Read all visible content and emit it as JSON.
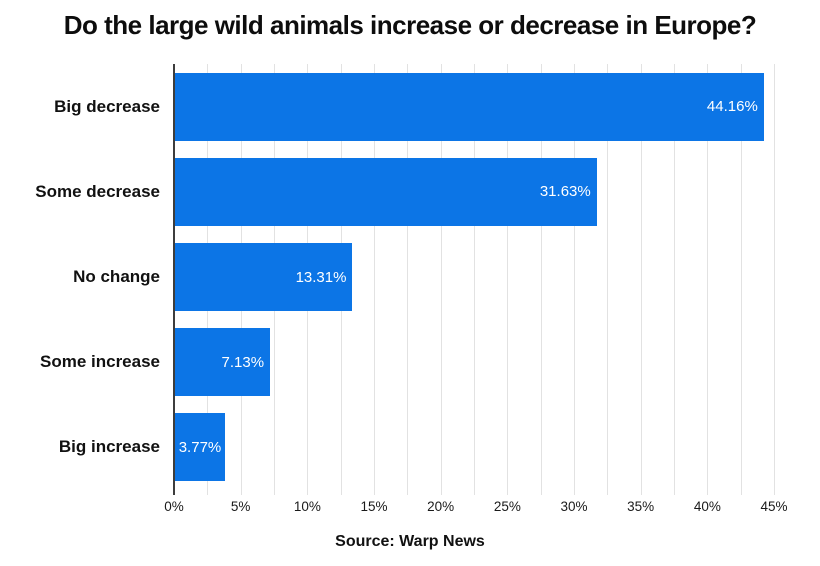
{
  "title": "Do the large wild animals increase or decrease in Europe?",
  "source": "Source: Warp News",
  "colors": {
    "bar": "#0c75e6",
    "grid": "#e2e2e2",
    "axis": "#3d3d3d",
    "value_label": "#ffffff",
    "text": "#111111",
    "background": "#ffffff"
  },
  "chart_data": {
    "type": "bar",
    "orientation": "horizontal",
    "title": "Do the large wild animals increase or decrease in Europe?",
    "categories": [
      "Big decrease",
      "Some decrease",
      "No change",
      "Some increase",
      "Big increase"
    ],
    "values": [
      44.16,
      31.63,
      13.31,
      7.13,
      3.77
    ],
    "value_labels": [
      "44.16%",
      "31.63%",
      "13.31%",
      "7.13%",
      "3.77%"
    ],
    "xlabel": "",
    "ylabel": "",
    "xlim": [
      0,
      45
    ],
    "x_major_step": 5,
    "x_minor_step": 2.5,
    "x_tick_labels": [
      "0%",
      "5%",
      "10%",
      "15%",
      "20%",
      "25%",
      "30%",
      "35%",
      "40%",
      "45%"
    ],
    "grid": true,
    "legend": false,
    "value_label_position": "inside-end",
    "source_caption": "Source: Warp News"
  }
}
